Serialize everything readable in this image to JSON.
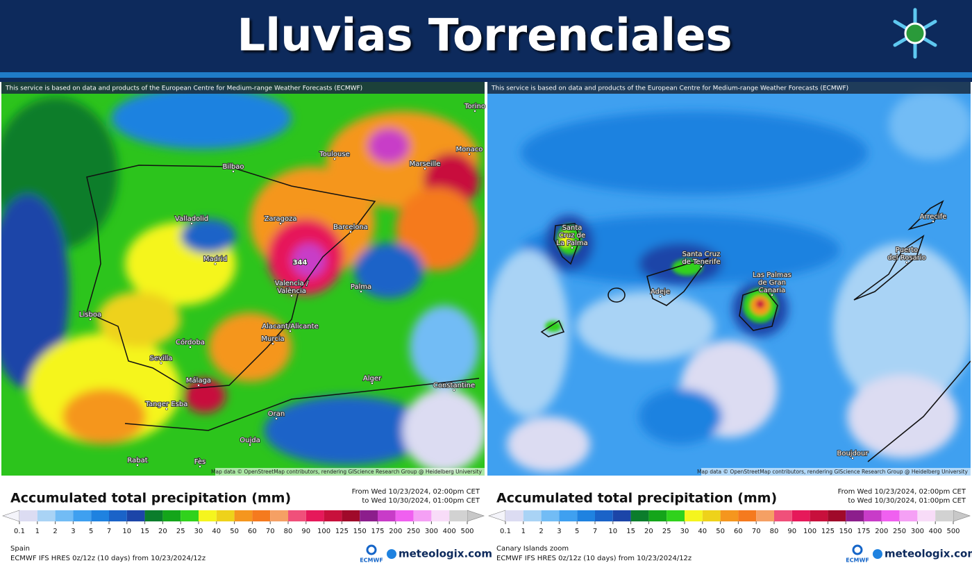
{
  "header": {
    "title": "Lluvias Torrenciales"
  },
  "legend": {
    "ticks": [
      0.1,
      1,
      2,
      3,
      5,
      7,
      10,
      15,
      20,
      25,
      30,
      40,
      50,
      60,
      70,
      80,
      90,
      100,
      125,
      150,
      175,
      200,
      250,
      300,
      400,
      500
    ],
    "colors": [
      "#dcdcf2",
      "#a9d3f5",
      "#72bcf5",
      "#3fa0f0",
      "#1f82e0",
      "#1a63c8",
      "#1c45a8",
      "#0b7d2c",
      "#14a51a",
      "#30d21c",
      "#f5f51e",
      "#eed21a",
      "#f5961e",
      "#f57a1e",
      "#f5a064",
      "#f0507a",
      "#e6195a",
      "#c8103c",
      "#a00a2a",
      "#8c1e8c",
      "#c83cc8",
      "#f060f0",
      "#f5a0f5",
      "#f8dcf8",
      "#d2d2d2"
    ]
  },
  "panels": [
    {
      "attribution": "This service is based on data and products of the European Centre for Medium-range Weather Forecasts (ECMWF)",
      "map_credit": "Map data © OpenStreetMap contributors, rendering GIScience Research Group @ Heidelberg University",
      "legend_title": "Accumulated total precipitation (mm)",
      "period_from": "From Wed 10/23/2024, 02:00pm CET",
      "period_to": "to Wed 10/30/2024, 01:00pm CET",
      "region": "Spain",
      "model": "ECMWF IFS HRES 0z/12z (10 days) from 10/23/2024/12z",
      "peak": "344",
      "places": [
        [
          "Torino"
        ],
        [
          "Monaco"
        ],
        [
          "Marseille"
        ],
        [
          "Toulouse"
        ],
        [
          "Bilbao"
        ],
        [
          "Zaragoza"
        ],
        [
          "Barcelona"
        ],
        [
          "Valladolid"
        ],
        [
          "Madrid"
        ],
        [
          "Valencia /",
          "València"
        ],
        [
          "Palma"
        ],
        [
          "Lisboa"
        ],
        [
          "Alacant/Alicante"
        ],
        [
          "Murcia"
        ],
        [
          "Córdoba"
        ],
        [
          "Sevilla"
        ],
        [
          "Málaga"
        ],
        [
          "Tanger Esba"
        ],
        [
          "Alger"
        ],
        [
          "Constantine"
        ],
        [
          "Oran"
        ],
        [
          "Oujda"
        ],
        [
          "Rabat"
        ],
        [
          "Fès"
        ]
      ]
    },
    {
      "attribution": "This service is based on data and products of the European Centre for Medium-range Weather Forecasts (ECMWF)",
      "map_credit": "Map data © OpenStreetMap contributors, rendering GIScience Research Group @ Heidelberg University",
      "legend_title": "Accumulated total precipitation (mm)",
      "period_from": "From Wed 10/23/2024, 02:00pm CET",
      "period_to": "to Wed 10/30/2024, 01:00pm CET",
      "region": "Canary Islands zoom",
      "model": "ECMWF IFS HRES 0z/12z (10 days) from 10/23/2024/12z",
      "places": [
        [
          "Santa",
          "Cruz de",
          "La Palma"
        ],
        [
          "Santa Cruz",
          "de Tenerife"
        ],
        [
          "Adeje"
        ],
        [
          "Las Palmas",
          "de Gran",
          "Canaria"
        ],
        [
          "Puerto",
          "del Rosario"
        ],
        [
          "Arrecife"
        ],
        [
          "Boujdour"
        ]
      ]
    }
  ],
  "brand": {
    "ecmwf": "ECMWF",
    "site": "meteologix.com"
  }
}
